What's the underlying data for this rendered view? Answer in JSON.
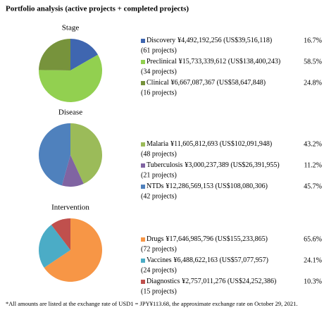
{
  "title": "Portfolio analysis (active projects + completed projects)",
  "footnote": "*All amounts are listed at the exchange rate of USD1 = JPY¥113.68, the approximate exchange rate on October 29, 2021.",
  "chart_data": [
    {
      "type": "pie",
      "title": "Stage",
      "categories": [
        "Discovery",
        "Preclinical",
        "Clinical"
      ],
      "amounts": [
        "¥4,492,192,256 (US$39,516,118)",
        "¥15,733,339,612 (US$138,400,243)",
        "¥6,667,087,367 (US$58,647,848)"
      ],
      "projects": [
        "(61 projects)",
        "(34 projects)",
        "(16 projects)"
      ],
      "values": [
        16.7,
        58.5,
        24.8
      ],
      "value_labels": [
        "16.7%",
        "58.5%",
        "24.8%"
      ],
      "colors": [
        "#3f66b0",
        "#92d050",
        "#77933c"
      ]
    },
    {
      "type": "pie",
      "title": "Disease",
      "categories": [
        "Malaria",
        "Tuberculosis",
        "NTDs"
      ],
      "amounts": [
        "¥11,605,812,693 (US$102,091,948)",
        "¥3,000,237,389 (US$26,391,955)",
        "¥12,286,569,153 (US$108,080,306)"
      ],
      "projects": [
        "(48 projects)",
        "(21 projects)",
        "(42 projects)"
      ],
      "values": [
        43.2,
        11.2,
        45.7
      ],
      "value_labels": [
        "43.2%",
        "11.2%",
        "45.7%"
      ],
      "colors": [
        "#9bbb59",
        "#8064a2",
        "#4f81bd"
      ]
    },
    {
      "type": "pie",
      "title": "Intervention",
      "categories": [
        "Drugs",
        "Vaccines",
        "Diagnostics"
      ],
      "amounts": [
        "¥17,646,985,796 (US$155,233,865)",
        "¥6,488,622,163 (US$57,077,957)",
        "¥2,757,011,276 (US$24,252,386)"
      ],
      "projects": [
        "(72 projects)",
        "(24 projects)",
        "(15 projects)"
      ],
      "values": [
        65.6,
        24.1,
        10.3
      ],
      "value_labels": [
        "65.6%",
        "24.1%",
        "10.3%"
      ],
      "colors": [
        "#f79646",
        "#4bacc6",
        "#c0504d"
      ]
    }
  ]
}
